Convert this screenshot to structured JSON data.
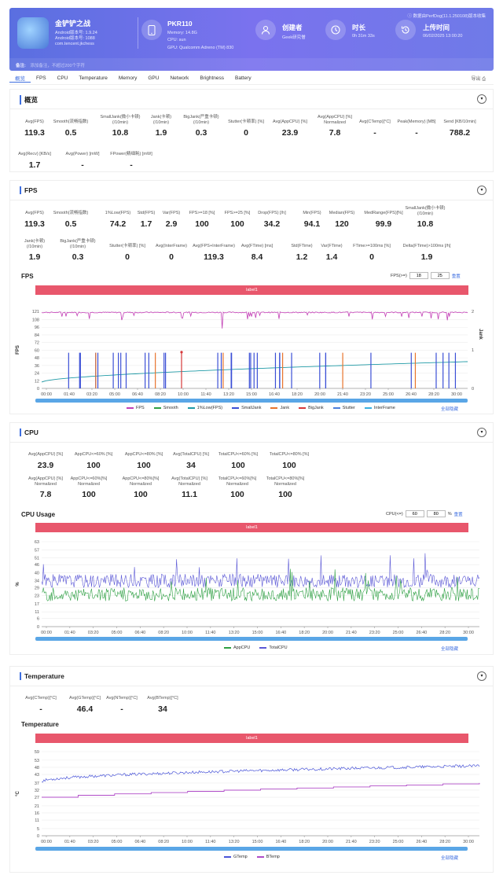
{
  "header": {
    "app_name": "金铲铲之战",
    "android_version": "Android版本号: 1.9.24",
    "android_code": "Android版本号: 1088",
    "package": "com.tencent.jkchess",
    "device": "PKR110",
    "memory": "Memory: 14.8G",
    "cpu": "CPU: sun",
    "gpu": "GPU: Qualcomm Adreno (TM) 830",
    "creator_title": "创建者",
    "creator": "Geek研究僧",
    "duration_title": "时长",
    "duration": "0h 31m 33s",
    "upload_title": "上传时间",
    "upload_time": "06/02/2025 13:00:20",
    "note": "数据由PerfDog(11.1.250108)版本收集",
    "remark_label": "备注:",
    "remark_placeholder": "添加备注，不超过200个字符"
  },
  "tabs": [
    "概览",
    "FPS",
    "CPU",
    "Temperature",
    "Memory",
    "GPU",
    "Network",
    "Brightness",
    "Battery"
  ],
  "tabs_right": "导出",
  "overview": {
    "title": "概览",
    "row1": [
      {
        "label": "Avg(FPS)",
        "value": "119.3"
      },
      {
        "label": "Smooth(流畅指数)",
        "value": "0.5"
      },
      {
        "label": "SmallJank(微小卡顿)\n(/10min)",
        "value": "10.8"
      },
      {
        "label": "Jank(卡顿)\n(/10min)",
        "value": "1.9"
      },
      {
        "label": "BigJank(严重卡顿)\n(/10min)",
        "value": "0.3"
      },
      {
        "label": "Stutter(卡顿率) [%]",
        "value": "0"
      },
      {
        "label": "Avg(AppCPU) [%]",
        "value": "23.9"
      },
      {
        "label": "Avg(AppCPU) [%]\nNormalized",
        "value": "7.8"
      },
      {
        "label": "Avg(CTemp)[°C]",
        "value": "-"
      },
      {
        "label": "Peak(Memory) [MB]",
        "value": "-"
      },
      {
        "label": "Send [KB/10min]",
        "value": "788.2"
      }
    ],
    "row2": [
      {
        "label": "Avg(Recv) [KB/s]",
        "value": "1.7"
      },
      {
        "label": "Avg(Power) [mW]",
        "value": "-"
      },
      {
        "label": "FPower(精细耗) [mW]",
        "value": "-"
      }
    ]
  },
  "fps": {
    "title": "FPS",
    "row1": [
      {
        "label": "Avg(FPS)",
        "value": "119.3"
      },
      {
        "label": "Smooth(流畅指数)",
        "value": "0.5"
      },
      {
        "label": "1%Low(FPS)",
        "value": "74.2"
      },
      {
        "label": "Std(FPS)",
        "value": "1.7"
      },
      {
        "label": "Var(FPS)",
        "value": "2.9"
      },
      {
        "label": "FPS>=18 [%]",
        "value": "100"
      },
      {
        "label": "FPS>=25 [%]",
        "value": "100"
      },
      {
        "label": "Drop(FPS) [/h]",
        "value": "34.2"
      },
      {
        "label": "Min(FPS)",
        "value": "94.1"
      },
      {
        "label": "Median(FPS)",
        "value": "120"
      },
      {
        "label": "MedRange(FPS)[%]",
        "value": "99.9"
      },
      {
        "label": "SmallJank(微小卡顿)\n(/10min)",
        "value": "10.8"
      }
    ],
    "row2": [
      {
        "label": "Jank(卡顿)\n(/10min)",
        "value": "1.9"
      },
      {
        "label": "BigJank(严重卡顿)\n(/10min)",
        "value": "0.3"
      },
      {
        "label": "Stutter(卡顿率) [%]",
        "value": "0"
      },
      {
        "label": "Avg(InterFrame)",
        "value": "0"
      },
      {
        "label": "Avg(FPS+InterFrame)",
        "value": "119.3"
      },
      {
        "label": "Avg(FTime) [ms]",
        "value": "8.4"
      },
      {
        "label": "Std(FTime)",
        "value": "1.2"
      },
      {
        "label": "Var(FTime)",
        "value": "1.4"
      },
      {
        "label": "FTime>=100ms [%]",
        "value": "0"
      },
      {
        "label": "Delta(FTime)>100ms [/h]",
        "value": "1.9"
      }
    ],
    "chart_title": "FPS",
    "label_bar": "label1",
    "threshold_label": "FPS(>=)",
    "threshold_values": [
      "18",
      "25"
    ],
    "reset": "重置",
    "hide_all": "全部隐藏"
  },
  "cpu": {
    "title": "CPU",
    "row1": [
      {
        "label": "Avg(AppCPU) [%]",
        "value": "23.9"
      },
      {
        "label": "AppCPU<=60% [%]",
        "value": "100"
      },
      {
        "label": "AppCPU<=80% [%]",
        "value": "100"
      },
      {
        "label": "Avg(TotalCPU) [%]",
        "value": "34"
      },
      {
        "label": "TotalCPU<=60% [%]",
        "value": "100"
      },
      {
        "label": "TotalCPU<=80% [%]",
        "value": "100"
      }
    ],
    "row2": [
      {
        "label": "Avg(AppCPU) [%]\nNormalized",
        "value": "7.8"
      },
      {
        "label": "AppCPU<=60%[%]\nNormalized",
        "value": "100"
      },
      {
        "label": "AppCPU<=80%[%]\nNormalized",
        "value": "100"
      },
      {
        "label": "Avg(TotalCPU) [%]\nNormalized",
        "value": "11.1"
      },
      {
        "label": "TotalCPU<=60%[%]\nNormalized",
        "value": "100"
      },
      {
        "label": "TotalCPU<=80%[%]\nNormalized",
        "value": "100"
      }
    ],
    "chart_title": "CPU Usage",
    "label_bar": "label1",
    "threshold_label": "CPU(<=)",
    "threshold_values": [
      "60",
      "80"
    ],
    "threshold_unit": "%",
    "reset": "重置",
    "hide_all": "全部隐藏"
  },
  "temperature": {
    "title": "Temperature",
    "row1": [
      {
        "label": "Avg(CTemp)[°C]",
        "value": "-"
      },
      {
        "label": "Avg(GTemp)[°C]",
        "value": "46.4"
      },
      {
        "label": "Avg(NTemp)[°C]",
        "value": "-"
      },
      {
        "label": "Avg(BTemp)[°C]",
        "value": "34"
      }
    ],
    "chart_title": "Temperature",
    "label_bar": "label1",
    "hide_all": "全部隐藏"
  },
  "chart_data": [
    {
      "type": "line",
      "title": "FPS",
      "ylabel": "FPS",
      "y2label": "Jank",
      "ylim": [
        0,
        121
      ],
      "y2lim": [
        0,
        2
      ],
      "yticks": [
        0,
        12,
        24,
        36,
        48,
        60,
        72,
        84,
        96,
        108,
        121
      ],
      "y2ticks": [
        0,
        1,
        2
      ],
      "xticks": [
        "00:00",
        "01:40",
        "03:20",
        "05:00",
        "06:40",
        "08:20",
        "10:00",
        "11:40",
        "13:20",
        "15:00",
        "16:40",
        "18:20",
        "20:00",
        "21:40",
        "23:20",
        "25:00",
        "26:40",
        "28:20",
        "30:00"
      ],
      "series": [
        {
          "name": "FPS",
          "color": "#c23fb5",
          "level": 119.3,
          "min": 94.1
        },
        {
          "name": "Smooth",
          "color": "#2ea043",
          "level": 0
        },
        {
          "name": "1%Low(FPS)",
          "color": "#1f9aa6",
          "start": 10,
          "end": 42
        },
        {
          "name": "SmallJank",
          "color": "#3b4fd6",
          "count": 34
        },
        {
          "name": "Jank",
          "color": "#e8742c",
          "count": 6
        },
        {
          "name": "BigJank",
          "color": "#d6383a",
          "count": 1
        },
        {
          "name": "Stutter",
          "color": "#4c7fdc",
          "value": 0
        },
        {
          "name": "InterFrame",
          "color": "#3ab0e0",
          "value": 0
        }
      ]
    },
    {
      "type": "line",
      "title": "CPU Usage",
      "ylabel": "%",
      "ylim": [
        0,
        63
      ],
      "yticks": [
        0,
        6,
        11,
        17,
        23,
        29,
        34,
        40,
        46,
        51,
        57,
        63
      ],
      "xticks": [
        "00:00",
        "01:40",
        "03:20",
        "05:00",
        "06:40",
        "08:20",
        "10:00",
        "11:40",
        "13:20",
        "15:00",
        "16:40",
        "18:20",
        "20:00",
        "21:40",
        "23:20",
        "25:00",
        "26:40",
        "28:20",
        "30:00"
      ],
      "series": [
        {
          "name": "AppCPU",
          "color": "#2ea043",
          "avg": 23.9
        },
        {
          "name": "TotalCPU",
          "color": "#5b58d6",
          "avg": 34
        }
      ]
    },
    {
      "type": "line",
      "title": "Temperature",
      "ylabel": "°C",
      "ylim": [
        0,
        59
      ],
      "yticks": [
        0,
        5,
        11,
        16,
        21,
        27,
        32,
        37,
        43,
        48,
        53,
        59
      ],
      "xticks": [
        "00:00",
        "01:40",
        "03:20",
        "05:00",
        "06:40",
        "08:20",
        "10:00",
        "11:40",
        "13:20",
        "15:00",
        "16:40",
        "18:20",
        "20:00",
        "21:40",
        "23:20",
        "25:00",
        "26:40",
        "28:20",
        "30:00"
      ],
      "series": [
        {
          "name": "GTemp",
          "color": "#4a55d8",
          "start": 38,
          "end": 49
        },
        {
          "name": "BTemp",
          "color": "#b04cc8",
          "start": 27,
          "end": 37
        }
      ]
    }
  ]
}
